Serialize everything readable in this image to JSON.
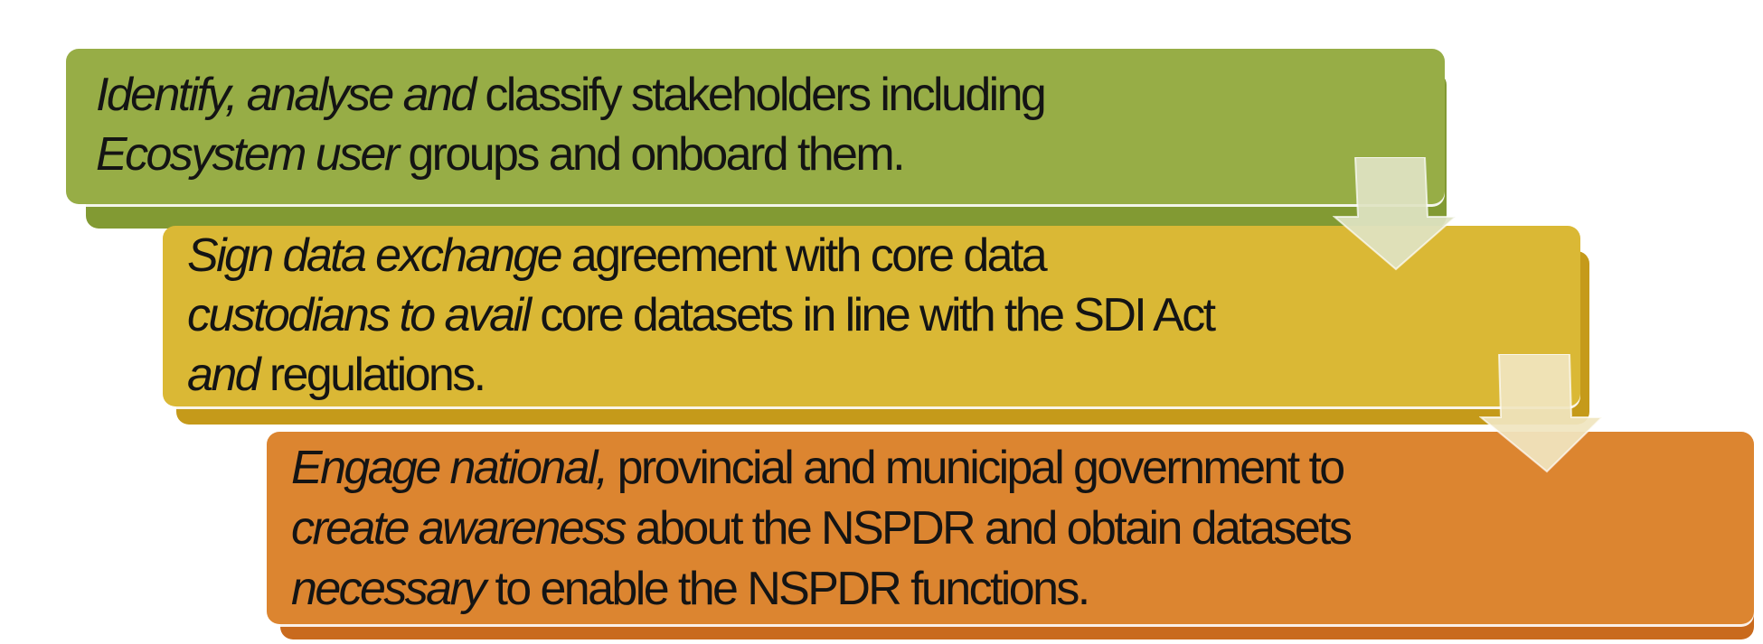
{
  "steps": [
    {
      "lines": [
        {
          "italic": "Identify, analyse and",
          "rest": " classify stakeholders including"
        },
        {
          "italic": "Ecosystem user",
          "rest": " groups and onboard them."
        }
      ],
      "color": "#97ad46"
    },
    {
      "lines": [
        {
          "italic": "Sign data exchange",
          "rest": " agreement with core data"
        },
        {
          "italic": "custodians to avail",
          "rest": " core datasets in line with the SDI Act"
        },
        {
          "italic": "and",
          "rest": " regulations."
        }
      ],
      "color": "#dab835"
    },
    {
      "lines": [
        {
          "italic": "Engage national,",
          "rest": " provincial and municipal government to"
        },
        {
          "italic": "create awareness",
          "rest": " about the NSPDR and obtain datasets"
        },
        {
          "italic": "necessary",
          "rest": " to enable the NSPDR functions."
        }
      ],
      "color": "#dc8530"
    }
  ],
  "arrows": [
    {
      "icon": "down-arrow-icon",
      "color": "#dfe3c3"
    },
    {
      "icon": "down-arrow-icon",
      "color": "#f0e5bf"
    }
  ]
}
